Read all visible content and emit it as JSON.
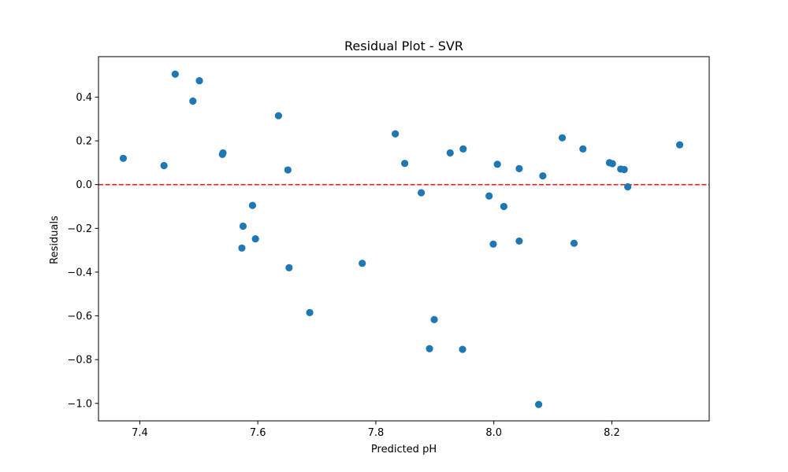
{
  "chart_data": {
    "type": "scatter",
    "title": "Residual Plot - SVR",
    "xlabel": "Predicted pH",
    "ylabel": "Residuals",
    "xlim": [
      7.33,
      8.365
    ],
    "ylim": [
      -1.08,
      0.585
    ],
    "xticks": [
      7.4,
      7.6,
      7.8,
      8.0,
      8.2
    ],
    "xtick_labels": [
      "7.4",
      "7.6",
      "7.8",
      "8.0",
      "8.2"
    ],
    "yticks": [
      0.4,
      0.2,
      0.0,
      -0.2,
      -0.4,
      -0.6,
      -0.8,
      -1.0
    ],
    "ytick_labels": [
      "0.4",
      "0.2",
      "0.0",
      "−0.2",
      "−0.4",
      "−0.6",
      "−0.8",
      "−1.0"
    ],
    "grid": false,
    "marker_color": "#1f77b4",
    "reference_line": {
      "y": 0.0,
      "color": "#d62728",
      "style": "dashed"
    },
    "points": [
      {
        "x": 7.372,
        "y": 0.12
      },
      {
        "x": 7.441,
        "y": 0.087
      },
      {
        "x": 7.46,
        "y": 0.505
      },
      {
        "x": 7.49,
        "y": 0.382
      },
      {
        "x": 7.501,
        "y": 0.475
      },
      {
        "x": 7.54,
        "y": 0.138
      },
      {
        "x": 7.541,
        "y": 0.145
      },
      {
        "x": 7.573,
        "y": -0.29
      },
      {
        "x": 7.575,
        "y": -0.19
      },
      {
        "x": 7.591,
        "y": -0.095
      },
      {
        "x": 7.596,
        "y": -0.248
      },
      {
        "x": 7.635,
        "y": 0.315
      },
      {
        "x": 7.651,
        "y": 0.067
      },
      {
        "x": 7.653,
        "y": -0.38
      },
      {
        "x": 7.688,
        "y": -0.585
      },
      {
        "x": 7.777,
        "y": -0.36
      },
      {
        "x": 7.833,
        "y": 0.232
      },
      {
        "x": 7.849,
        "y": 0.097
      },
      {
        "x": 7.877,
        "y": -0.037
      },
      {
        "x": 7.891,
        "y": -0.75
      },
      {
        "x": 7.899,
        "y": -0.617
      },
      {
        "x": 7.926,
        "y": 0.145
      },
      {
        "x": 7.947,
        "y": -0.753
      },
      {
        "x": 7.948,
        "y": 0.163
      },
      {
        "x": 7.992,
        "y": -0.052
      },
      {
        "x": 7.999,
        "y": -0.272
      },
      {
        "x": 8.006,
        "y": 0.093
      },
      {
        "x": 8.017,
        "y": -0.1
      },
      {
        "x": 8.043,
        "y": 0.073
      },
      {
        "x": 8.043,
        "y": -0.258
      },
      {
        "x": 8.076,
        "y": -1.005
      },
      {
        "x": 8.083,
        "y": 0.04
      },
      {
        "x": 8.116,
        "y": 0.214
      },
      {
        "x": 8.136,
        "y": -0.268
      },
      {
        "x": 8.151,
        "y": 0.163
      },
      {
        "x": 8.196,
        "y": 0.1
      },
      {
        "x": 8.201,
        "y": 0.096
      },
      {
        "x": 8.215,
        "y": 0.071
      },
      {
        "x": 8.221,
        "y": 0.069
      },
      {
        "x": 8.227,
        "y": -0.01
      },
      {
        "x": 8.315,
        "y": 0.182
      }
    ]
  }
}
